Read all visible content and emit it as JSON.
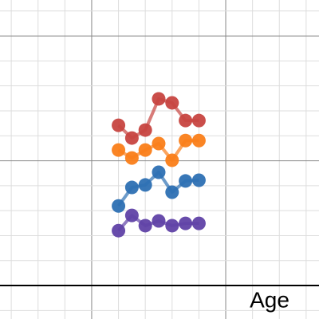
{
  "chart_data": {
    "type": "line",
    "x_label": "Age",
    "x": [
      6,
      6.5,
      7,
      7.5,
      8,
      8.5,
      9
    ],
    "series": [
      {
        "color": "#c74440",
        "values": [
          6.42,
          5.91,
          6.23,
          7.48,
          7.32,
          6.61,
          6.61
        ]
      },
      {
        "color": "#fa7e19",
        "values": [
          5.43,
          5.11,
          5.43,
          5.69,
          5.02,
          5.81,
          5.81
        ]
      },
      {
        "color": "#2d70b3",
        "values": [
          3.19,
          3.93,
          4.03,
          4.54,
          3.74,
          4.19,
          4.22
        ]
      },
      {
        "color": "#6042a6",
        "values": [
          2.2,
          2.81,
          2.4,
          2.59,
          2.4,
          2.49,
          2.49
        ]
      }
    ],
    "xlim": [
      1.58,
      13.48
    ],
    "ylim": [
      -1.34,
      11.44
    ],
    "xticks": [
      2,
      3,
      4,
      5,
      6,
      7,
      8,
      9,
      10,
      11,
      12,
      13
    ],
    "yticks": [
      -1,
      0,
      1,
      2,
      3,
      4,
      5,
      6,
      7,
      8,
      9,
      10,
      11
    ],
    "grid": true
  }
}
